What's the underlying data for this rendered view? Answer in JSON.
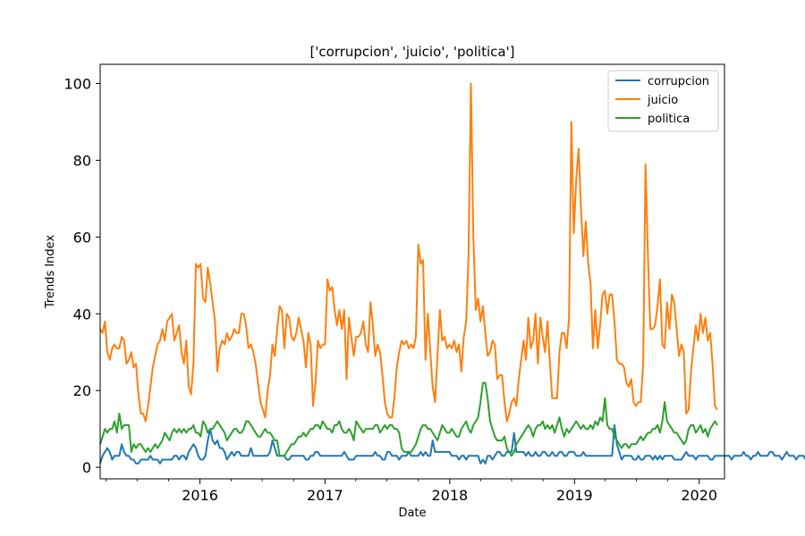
{
  "chart_data": {
    "type": "line",
    "title": "['corrupcion', 'juicio', 'politica']",
    "xlabel": "Date",
    "ylabel": "Trends Index",
    "x_start": "2015-03-15",
    "x_step_days": 7,
    "xlim": [
      "2015-03-15",
      "2020-03-15"
    ],
    "ylim": [
      -3,
      105
    ],
    "xticks": [
      {
        "label": "2016",
        "date": "2016-01-01"
      },
      {
        "label": "2017",
        "date": "2017-01-01"
      },
      {
        "label": "2018",
        "date": "2018-01-01"
      },
      {
        "label": "2019",
        "date": "2019-01-01"
      },
      {
        "label": "2020",
        "date": "2020-01-01"
      }
    ],
    "yticks": [
      0,
      20,
      40,
      60,
      80,
      100
    ],
    "grid": false,
    "legend_position": "top-right",
    "series": [
      {
        "name": "corrupcion",
        "color": "#1f77b4",
        "values": [
          1,
          3,
          4,
          5,
          4,
          2,
          3,
          3,
          3,
          6,
          4,
          3,
          3,
          2,
          2,
          1,
          1,
          2,
          2,
          2,
          2,
          3,
          2,
          2,
          2,
          1,
          2,
          2,
          2,
          2,
          2,
          3,
          3,
          2,
          3,
          3,
          2,
          4,
          5,
          6,
          5,
          3,
          2,
          2,
          3,
          7,
          10,
          7,
          6,
          7,
          5,
          5,
          4,
          2,
          3,
          4,
          3,
          4,
          4,
          3,
          3,
          3,
          3,
          5,
          3,
          3,
          3,
          3,
          3,
          3,
          3,
          4,
          7,
          5,
          3,
          3,
          3,
          3,
          2,
          2,
          3,
          3,
          3,
          3,
          3,
          3,
          2,
          2,
          3,
          3,
          4,
          4,
          3,
          3,
          3,
          3,
          3,
          3,
          3,
          3,
          3,
          3,
          4,
          3,
          2,
          2,
          2,
          3,
          3,
          3,
          3,
          3,
          3,
          3,
          3,
          4,
          3,
          3,
          2,
          2,
          4,
          4,
          3,
          3,
          3,
          2,
          3,
          3,
          3,
          4,
          3,
          3,
          3,
          3,
          4,
          3,
          4,
          3,
          3,
          7,
          4,
          4,
          4,
          4,
          4,
          4,
          4,
          3,
          3,
          3,
          2,
          3,
          3,
          2,
          3,
          3,
          3,
          3,
          3,
          1,
          2,
          1,
          3,
          3,
          2,
          3,
          4,
          4,
          3,
          3,
          4,
          4,
          4,
          9,
          4,
          4,
          4,
          4,
          3,
          4,
          3,
          3,
          4,
          3,
          3,
          4,
          4,
          3,
          3,
          4,
          3,
          3,
          4,
          4,
          3,
          3,
          4,
          4,
          4,
          3,
          3,
          3,
          4,
          3,
          3,
          3,
          3,
          3,
          3,
          3,
          3,
          3,
          3,
          3,
          3,
          11,
          6,
          4,
          2,
          3,
          3,
          3,
          3,
          2,
          2,
          3,
          2,
          2,
          3,
          3,
          3,
          2,
          3,
          2,
          3,
          2,
          3,
          3,
          3,
          3,
          2,
          2,
          2,
          2,
          3,
          4,
          3,
          3,
          3,
          2,
          3,
          3,
          3,
          3,
          3,
          2,
          2,
          3,
          3,
          3,
          3,
          3,
          3,
          3,
          2,
          3,
          3,
          3,
          3,
          4,
          3,
          3,
          2,
          3,
          3,
          4,
          3,
          3,
          3,
          3,
          4,
          4,
          3,
          3,
          3,
          2,
          3,
          4,
          3,
          3,
          3,
          2,
          3,
          3,
          3,
          2,
          2,
          3,
          2,
          2,
          2,
          2,
          1,
          1,
          1,
          1,
          1,
          2,
          2,
          2,
          3,
          4,
          4,
          4,
          4,
          4,
          6,
          7,
          2,
          2,
          2,
          3,
          3,
          3,
          2,
          3,
          3,
          3,
          2,
          2,
          1,
          2,
          2,
          3,
          2,
          3,
          3,
          4,
          4
        ]
      },
      {
        "name": "juicio",
        "color": "#ff7f0e",
        "values": [
          36,
          35,
          38,
          30,
          28,
          31,
          32,
          31,
          31,
          34,
          33,
          27,
          28,
          30,
          26,
          27,
          19,
          14,
          14,
          12,
          16,
          21,
          26,
          29,
          32,
          33,
          36,
          33,
          38,
          39,
          40,
          33,
          35,
          37,
          30,
          27,
          33,
          21,
          19,
          27,
          53,
          52,
          53,
          44,
          43,
          52,
          48,
          43,
          38,
          25,
          31,
          33,
          32,
          35,
          33,
          34,
          36,
          35,
          35,
          40,
          40,
          37,
          31,
          32,
          30,
          27,
          22,
          17,
          15,
          13,
          20,
          24,
          32,
          29,
          36,
          42,
          41,
          31,
          40,
          39,
          34,
          33,
          35,
          39,
          36,
          33,
          26,
          35,
          32,
          16,
          22,
          33,
          31,
          32,
          32,
          49,
          46,
          47,
          41,
          37,
          41,
          36,
          41,
          23,
          39,
          34,
          29,
          34,
          34,
          35,
          38,
          32,
          30,
          43,
          37,
          29,
          32,
          30,
          24,
          17,
          14,
          13,
          13,
          18,
          26,
          30,
          33,
          32,
          33,
          31,
          32,
          31,
          34,
          58,
          53,
          54,
          28,
          40,
          30,
          21,
          17,
          29,
          41,
          33,
          34,
          31,
          32,
          31,
          33,
          30,
          32,
          25,
          34,
          38,
          55,
          100,
          60,
          41,
          44,
          38,
          42,
          35,
          29,
          30,
          33,
          32,
          23,
          24,
          24,
          17,
          12,
          14,
          17,
          18,
          16,
          23,
          28,
          33,
          28,
          39,
          31,
          33,
          40,
          27,
          39,
          34,
          30,
          38,
          27,
          18,
          18,
          18,
          30,
          35,
          35,
          31,
          39,
          90,
          61,
          75,
          83,
          68,
          55,
          64,
          53,
          48,
          31,
          41,
          31,
          37,
          45,
          46,
          40,
          45,
          45,
          38,
          28,
          27,
          27,
          26,
          22,
          21,
          23,
          17,
          16,
          17,
          17,
          27,
          79,
          55,
          36,
          36,
          37,
          42,
          49,
          32,
          31,
          43,
          36,
          45,
          43,
          36,
          29,
          32,
          30,
          14,
          15,
          25,
          31,
          37,
          33,
          40,
          35,
          39,
          33,
          35,
          27,
          16,
          15
        ]
      },
      {
        "name": "politica",
        "color": "#2ca02c",
        "values": [
          6,
          8,
          10,
          9,
          10,
          10,
          12,
          9,
          14,
          10,
          11,
          11,
          11,
          4,
          6,
          5,
          6,
          6,
          5,
          4,
          5,
          4,
          5,
          6,
          5,
          6,
          7,
          9,
          8,
          7,
          9,
          10,
          9,
          10,
          9,
          10,
          9,
          10,
          10,
          11,
          9,
          9,
          8,
          12,
          11,
          9,
          10,
          10,
          11,
          12,
          11,
          10,
          9,
          7,
          8,
          9,
          10,
          10,
          9,
          9,
          10,
          12,
          12,
          11,
          10,
          9,
          8,
          8,
          9,
          10,
          9,
          9,
          8,
          7,
          7,
          3,
          3,
          3,
          4,
          5,
          6,
          6,
          7,
          8,
          8,
          9,
          8,
          9,
          10,
          10,
          11,
          11,
          10,
          12,
          11,
          10,
          10,
          9,
          11,
          11,
          12,
          10,
          9,
          9,
          10,
          9,
          7,
          12,
          11,
          10,
          9,
          10,
          10,
          10,
          10,
          11,
          11,
          9,
          10,
          11,
          10,
          11,
          11,
          10,
          10,
          9,
          5,
          4,
          4,
          4,
          4,
          5,
          6,
          8,
          10,
          11,
          11,
          10,
          10,
          9,
          8,
          7,
          9,
          11,
          10,
          9,
          9,
          10,
          9,
          8,
          8,
          10,
          11,
          12,
          10,
          9,
          11,
          12,
          13,
          17,
          22,
          22,
          18,
          12,
          10,
          8,
          7,
          7,
          7,
          8,
          5,
          4,
          3,
          4,
          6,
          7,
          8,
          9,
          10,
          11,
          10,
          8,
          10,
          11,
          11,
          12,
          10,
          11,
          10,
          11,
          9,
          11,
          13,
          10,
          8,
          10,
          9,
          10,
          11,
          12,
          11,
          10,
          11,
          10,
          10,
          11,
          10,
          12,
          11,
          13,
          12,
          18,
          11,
          10,
          10,
          8,
          7,
          6,
          5,
          6,
          6,
          5,
          6,
          6,
          6,
          7,
          8,
          7,
          8,
          9,
          9,
          10,
          10,
          11,
          9,
          12,
          17,
          12,
          11,
          10,
          9,
          9,
          8,
          7,
          6,
          7,
          10,
          11,
          11,
          9,
          10,
          11,
          9,
          10,
          8,
          10,
          11,
          12,
          11
        ]
      }
    ]
  }
}
